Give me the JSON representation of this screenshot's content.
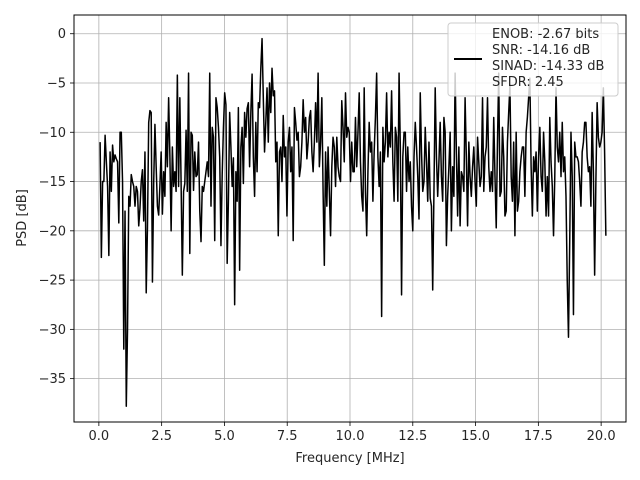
{
  "chart_data": {
    "type": "line",
    "title": "",
    "xlabel": "Frequency [MHz]",
    "ylabel": "PSD [dB]",
    "xlim": [
      -0.99,
      20.99
    ],
    "ylim": [
      -39.4,
      1.9
    ],
    "x_ticks": [
      0.0,
      2.5,
      5.0,
      7.5,
      10.0,
      12.5,
      15.0,
      17.5,
      20.0
    ],
    "x_tick_labels": [
      "0.0",
      "2.5",
      "5.0",
      "7.5",
      "10.0",
      "12.5",
      "15.0",
      "17.5",
      "20.0"
    ],
    "y_ticks": [
      0,
      -5,
      -10,
      -15,
      -20,
      -25,
      -30,
      -35
    ],
    "y_tick_labels": [
      "0",
      "−5",
      "−10",
      "−15",
      "−20",
      "−25",
      "−30",
      "−35"
    ],
    "grid": true,
    "legend_position": "top-right",
    "legend_lines": [
      "ENOB: -2.67 bits",
      "SNR: -14.16 dB",
      "SINAD: -14.33 dB",
      "SFDR: 2.45"
    ],
    "line_color": "#000000",
    "x_start": 0.05,
    "x_step": 0.0496,
    "values": [
      -11,
      -22.7,
      -15,
      -15,
      -10.3,
      -13,
      -15.5,
      -22.5,
      -12,
      -16,
      -11.3,
      -13,
      -12.3,
      -12.7,
      -13,
      -19.2,
      -10,
      -10,
      -15,
      -32,
      -18,
      -37.8,
      -30,
      -16.5,
      -17.5,
      -14.3,
      -15,
      -15.5,
      -17.5,
      -15.5,
      -16,
      -19.5,
      -17.7,
      -15,
      -13.8,
      -19,
      -12,
      -26.3,
      -19.7,
      -9,
      -7.8,
      -8,
      -25.2,
      -15.2,
      -9.2,
      -13.5,
      -17.5,
      -18.4,
      -15.4,
      -12,
      -18.3,
      -14,
      -16.5,
      -9,
      -13.5,
      -6.5,
      -12.3,
      -20,
      -11.5,
      -15.5,
      -14,
      -16,
      -4.2,
      -15.5,
      -6.5,
      -15,
      -24.5,
      -16,
      -15.2,
      -9.8,
      -16,
      -4,
      -22.3,
      -10,
      -10.3,
      -15.9,
      -12,
      -14.5,
      -14.3,
      -11,
      -18,
      -21.1,
      -15.5,
      -16,
      -15,
      -14,
      -13,
      -14.5,
      -4,
      -17.5,
      -9.5,
      -10.5,
      -21,
      -6.5,
      -7.5,
      -9.5,
      -12.5,
      -21.5,
      -14.3,
      -9.5,
      -6,
      -7.2,
      -23.3,
      -16.8,
      -8,
      -11.5,
      -15.5,
      -12.6,
      -27.5,
      -14,
      -17,
      -7.5,
      -24,
      -11.5,
      -9.5,
      -15.2,
      -8,
      -10.5,
      -7.6,
      -7,
      -13.5,
      -8,
      -4.1,
      -12.5,
      -16.5,
      -9,
      -14,
      -7,
      -7.5,
      -3.5,
      -0.5,
      -6.5,
      -12,
      -9,
      -5.5,
      -11,
      -5,
      -8,
      -3.5,
      -6.3,
      -5.8,
      -13,
      -11,
      -20.5,
      -12,
      -11.5,
      -15,
      -8.3,
      -12.5,
      -11.5,
      -18.5,
      -11,
      -9.5,
      -14,
      -11.5,
      -21,
      -7.5,
      -9,
      -10.8,
      -10,
      -14.5,
      -13.5,
      -11,
      -6.7,
      -10,
      -8.5,
      -12.7,
      -11,
      -8.5,
      -7.8,
      -12,
      -14,
      -11,
      -7,
      -11,
      -4,
      -13.5,
      -11,
      -6.5,
      -16,
      -23.5,
      -12,
      -17.5,
      -11.5,
      -16,
      -20.5,
      -13.5,
      -10.5,
      -11.5,
      -15.5,
      -10.5,
      -13.5,
      -14.5,
      -15,
      -6.8,
      -9.5,
      -13,
      -6,
      -10.5,
      -9.5,
      -10,
      -15,
      -11,
      -14,
      -14,
      -8.5,
      -13.5,
      -10,
      -6,
      -13,
      -16.5,
      -18,
      -5.5,
      -16,
      -20.5,
      -14,
      -9,
      -12,
      -11,
      -17,
      -12,
      -8.5,
      -4,
      -12.5,
      -15.5,
      -12,
      -28.7,
      -9.5,
      -13,
      -11,
      -6,
      -12.5,
      -10,
      -11.5,
      -5.8,
      -13,
      -17,
      -9.5,
      -10.5,
      -17,
      -4,
      -11.5,
      -26.5,
      -12.5,
      -10,
      -10,
      -16,
      -11.5,
      -15,
      -13,
      -17.5,
      -20,
      -12.5,
      -9,
      -11.5,
      -14.5,
      -18.8,
      -6,
      -12,
      -16,
      -15,
      -9.5,
      -13,
      -17,
      -11,
      -16.7,
      -17.5,
      -26,
      -16,
      -5.5,
      -12.5,
      -16.5,
      -13,
      -9,
      -14.5,
      -17,
      -8.5,
      -10,
      -21.5,
      -16.5,
      -13.5,
      -10,
      -20,
      -13.5,
      -16.5,
      -4,
      -12,
      -18.5,
      -11.5,
      -19.5,
      -14,
      -14.5,
      -16,
      -6.5,
      -12.5,
      -19.5,
      -11,
      -14.5,
      -16.5,
      -13.5,
      -11.5,
      -15,
      -17.5,
      -10.5,
      -13,
      -15.5,
      -14.5,
      -6.5,
      -16,
      -12.5,
      -11.5,
      -6.5,
      -13.5,
      -16,
      -14,
      -16,
      -8.5,
      -14.5,
      -19.7,
      -11,
      -4,
      -16.5,
      -16,
      -9.5,
      -12.5,
      -18.5,
      -18,
      -11,
      -8,
      -5.2,
      -14.5,
      -17,
      -11,
      -20.5,
      -10,
      -18,
      -17,
      -14,
      -12.5,
      -11.5,
      -11.5,
      -16.5,
      -10,
      -8.5,
      -6.5,
      -4.5,
      -13.5,
      -18.5,
      -12.5,
      -14,
      -12,
      -18,
      -12.5,
      -9.5,
      -14.5,
      -16,
      -10,
      -13,
      -18.5,
      -14.5,
      -18.5,
      -8.5,
      -13,
      -15.5,
      -20.5,
      -14.5,
      -5.5,
      -11.5,
      -13,
      -10,
      -14.5,
      -9,
      -14,
      -12.5,
      -16.5,
      -25,
      -30.8,
      -21,
      -10,
      -14.5,
      -28.5,
      -11,
      -12.5,
      -12.5,
      -13,
      -15,
      -17.5,
      -12,
      -11,
      -9,
      -9,
      -12.5,
      -14,
      -13.5,
      -17.5,
      -8,
      -14,
      -24.5,
      -15,
      -7,
      -10.5,
      -11.5,
      -11,
      -10,
      -5.5,
      -12,
      -20.5
    ]
  }
}
